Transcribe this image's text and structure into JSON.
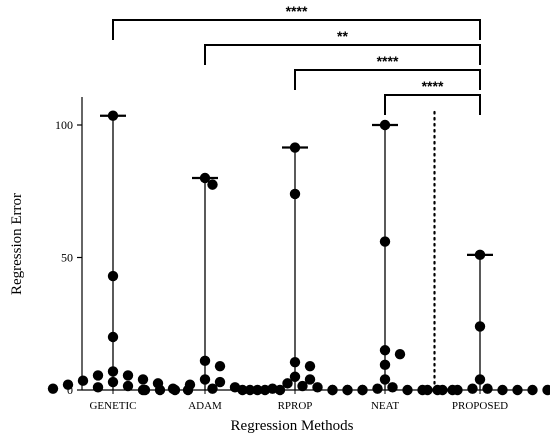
{
  "chart_data": {
    "type": "scatter",
    "title": "",
    "xlabel": "Regression Methods",
    "ylabel": "Regression Error",
    "ylim": [
      0,
      107
    ],
    "yticks": [
      0,
      50,
      100
    ],
    "y_tick_labels": [
      "0",
      "50",
      "100"
    ],
    "categories": [
      "GENETIC",
      "ADAM",
      "RPROP",
      "NEAT",
      "PROPOSED"
    ],
    "series": [
      {
        "category": "GENETIC",
        "max": 103.5,
        "values": [
          103.5,
          43,
          20,
          7,
          5.5,
          5.5,
          4,
          3.5,
          3,
          2.5,
          2,
          1.5,
          1,
          0.5,
          0.5,
          0,
          0
        ]
      },
      {
        "category": "ADAM",
        "max": 80,
        "values": [
          80,
          77.5,
          11,
          9,
          4,
          3,
          2,
          1,
          0.5,
          0,
          0,
          0,
          0,
          0,
          0
        ]
      },
      {
        "category": "RPROP",
        "max": 91.5,
        "values": [
          91.5,
          74,
          10.5,
          9,
          5,
          4,
          2.5,
          1.5,
          1,
          0.5,
          0,
          0,
          0,
          0,
          0
        ]
      },
      {
        "category": "NEAT",
        "max": 100,
        "values": [
          100,
          56,
          15,
          13.5,
          9.5,
          4,
          1,
          0.5,
          0,
          0,
          0,
          0,
          0,
          0,
          0
        ]
      },
      {
        "category": "PROPOSED",
        "max": 51,
        "values": [
          51,
          24,
          4,
          0.5,
          0.5,
          0,
          0,
          0,
          0,
          0,
          0,
          0
        ]
      }
    ],
    "comparisons": [
      {
        "from": "GENETIC",
        "to": "PROPOSED",
        "label": "****"
      },
      {
        "from": "ADAM",
        "to": "PROPOSED",
        "label": "**"
      },
      {
        "from": "RPROP",
        "to": "PROPOSED",
        "label": "****"
      },
      {
        "from": "NEAT",
        "to": "PROPOSED",
        "label": "****"
      }
    ],
    "divider_between": [
      "NEAT",
      "PROPOSED"
    ],
    "marker_color": "#000000"
  }
}
